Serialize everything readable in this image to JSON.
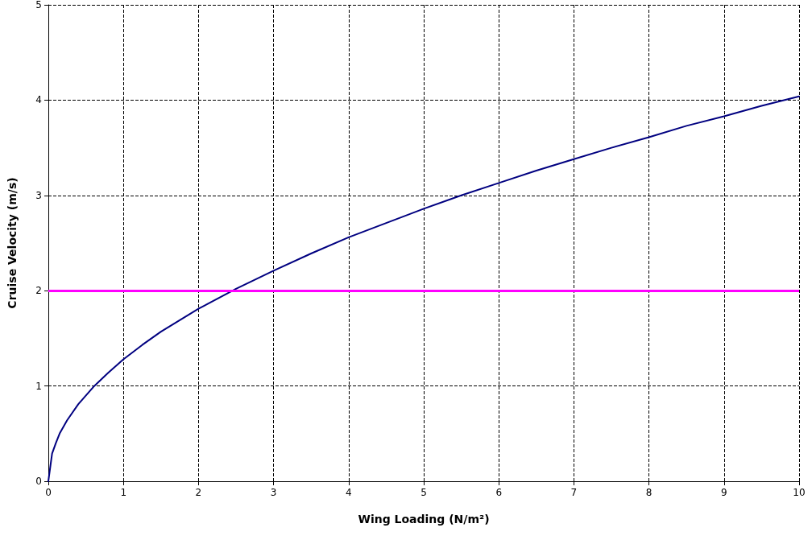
{
  "chart_data": {
    "type": "line",
    "xlabel": "Wing Loading (N/m²)",
    "ylabel": "Cruise Velocity (m/s)",
    "series": [
      {
        "color": "#000080",
        "x": [
          0,
          0.05,
          0.1,
          0.15,
          0.25,
          0.4,
          0.6,
          0.8,
          1,
          1.25,
          1.5,
          1.75,
          2,
          2.5,
          3,
          3.5,
          4,
          4.5,
          5,
          5.5,
          6,
          6.5,
          7,
          7.5,
          8,
          8.5,
          9,
          9.5,
          10
        ],
        "values": [
          0,
          0.29,
          0.4,
          0.5,
          0.64,
          0.81,
          0.99,
          1.14,
          1.28,
          1.43,
          1.57,
          1.69,
          1.81,
          2.02,
          2.21,
          2.39,
          2.56,
          2.71,
          2.86,
          3.0,
          3.13,
          3.26,
          3.38,
          3.5,
          3.61,
          3.73,
          3.83,
          3.94,
          4.04
        ]
      }
    ],
    "xlim": [
      0,
      10
    ],
    "xticks": [
      0,
      1,
      2,
      3,
      4,
      5,
      6,
      7,
      8,
      9,
      10
    ],
    "ylim": [
      0,
      5
    ],
    "yticks": [
      0,
      1,
      2,
      3,
      4,
      5
    ],
    "ref_lines": [
      {
        "axis": "y",
        "value": 2,
        "color": "#ff00ff"
      }
    ],
    "grid": true,
    "marker": "none",
    "line_style": "solid"
  }
}
